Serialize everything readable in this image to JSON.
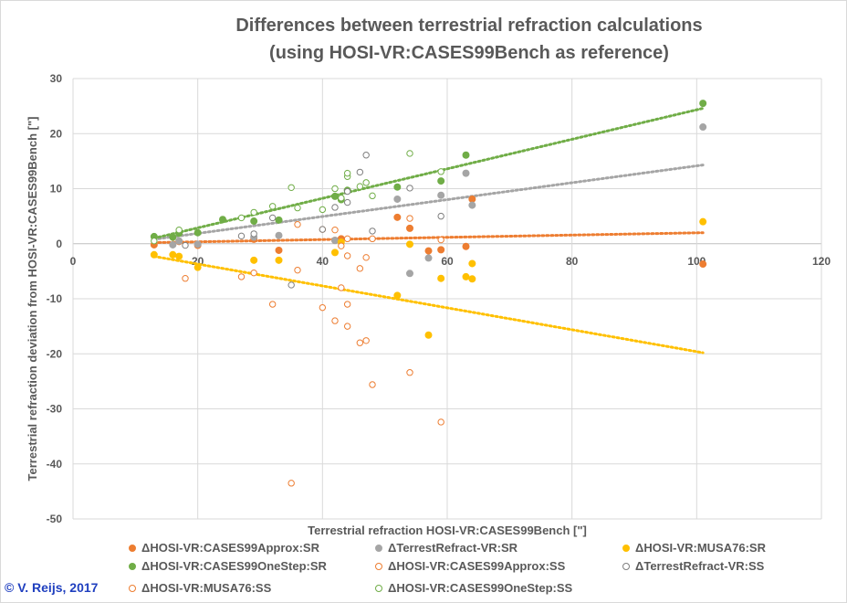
{
  "chart_data": {
    "type": "scatter",
    "title": [
      "Differences between terrestrial refraction calculations",
      "(using HOSI-VR:CASES99Bench as reference)"
    ],
    "xlabel": "Terrestrial refraction HOSI-VR:CASES99Bench [\"]",
    "ylabel": "Terrestrial refraction deviation from HOSI-VR:CASES99Bench [\"]",
    "xlim": [
      0,
      120
    ],
    "ylim": [
      -50,
      30
    ],
    "xticks": [
      0,
      20,
      40,
      60,
      80,
      100,
      120
    ],
    "yticks": [
      -50,
      -40,
      -30,
      -20,
      -10,
      0,
      10,
      20,
      30
    ],
    "xtick_labels": [
      "0",
      "20",
      "40",
      "60",
      "80",
      "100",
      "120"
    ],
    "ytick_labels": [
      "-50",
      "-40",
      "-30",
      "-20",
      "-10",
      "0",
      "10",
      "20",
      "30"
    ],
    "grid": true,
    "series": [
      {
        "name": "ΔHOSI-VR:CASES99Approx:SR",
        "color": "#ed7d31",
        "filled": true,
        "points": [
          [
            13,
            -0.2
          ],
          [
            17,
            0.4
          ],
          [
            20,
            -0.3
          ],
          [
            29,
            0.8
          ],
          [
            33,
            -1.2
          ],
          [
            42,
            0.6
          ],
          [
            43,
            0.9
          ],
          [
            52,
            4.8
          ],
          [
            54,
            2.8
          ],
          [
            57,
            -1.3
          ],
          [
            59,
            -1.1
          ],
          [
            63,
            -0.5
          ],
          [
            64,
            8.1
          ],
          [
            101,
            -3.7
          ]
        ],
        "trend": [
          [
            13,
            0.2
          ],
          [
            101,
            2.0
          ]
        ]
      },
      {
        "name": "ΔTerrestRefract-VR:SR",
        "color": "#a5a5a5",
        "filled": true,
        "points": [
          [
            16,
            -0.2
          ],
          [
            17,
            0.5
          ],
          [
            20,
            -0.1
          ],
          [
            29,
            1.2
          ],
          [
            33,
            1.5
          ],
          [
            42,
            0.6
          ],
          [
            52,
            8.1
          ],
          [
            54,
            -5.4
          ],
          [
            57,
            -2.6
          ],
          [
            59,
            8.8
          ],
          [
            63,
            12.8
          ],
          [
            64,
            7.0
          ],
          [
            101,
            21.2
          ]
        ],
        "trend": [
          [
            13,
            0.8
          ],
          [
            101,
            14.3
          ]
        ]
      },
      {
        "name": "ΔHOSI-VR:MUSA76:SR",
        "color": "#ffc000",
        "filled": true,
        "points": [
          [
            13,
            -2.0
          ],
          [
            16,
            -2.0
          ],
          [
            17,
            -2.3
          ],
          [
            20,
            -4.3
          ],
          [
            29,
            -3.0
          ],
          [
            33,
            -3.0
          ],
          [
            42,
            -1.6
          ],
          [
            43,
            0.3
          ],
          [
            52,
            -9.4
          ],
          [
            54,
            -0.1
          ],
          [
            57,
            -16.6
          ],
          [
            59,
            -6.3
          ],
          [
            63,
            -6.0
          ],
          [
            64,
            -3.6
          ],
          [
            64,
            -6.4
          ],
          [
            101,
            4.0
          ]
        ],
        "trend": [
          [
            13,
            -2.3
          ],
          [
            101,
            -19.8
          ]
        ]
      },
      {
        "name": "ΔHOSI-VR:CASES99OneStep:SR",
        "color": "#70ad47",
        "filled": true,
        "points": [
          [
            13,
            1.3
          ],
          [
            16,
            1.2
          ],
          [
            17,
            1.9
          ],
          [
            20,
            2.0
          ],
          [
            24,
            4.4
          ],
          [
            29,
            4.1
          ],
          [
            33,
            4.3
          ],
          [
            42,
            8.6
          ],
          [
            43,
            8.0
          ],
          [
            44,
            9.7
          ],
          [
            52,
            10.3
          ],
          [
            59,
            11.4
          ],
          [
            63,
            16.1
          ],
          [
            101,
            25.5
          ]
        ],
        "trend": [
          [
            13,
            1.0
          ],
          [
            101,
            24.6
          ]
        ]
      },
      {
        "name": "ΔHOSI-VR:CASES99Approx:SS",
        "color": "#ed7d31",
        "filled": false,
        "points": [
          [
            18,
            -6.3
          ],
          [
            27,
            -6.0
          ],
          [
            29,
            -5.3
          ],
          [
            32,
            -11.0
          ],
          [
            35,
            -43.5
          ],
          [
            36,
            -4.8
          ],
          [
            36,
            3.5
          ],
          [
            40,
            -11.6
          ],
          [
            40,
            2.6
          ],
          [
            42,
            -14.0
          ],
          [
            42,
            2.5
          ],
          [
            43,
            -8.0
          ],
          [
            43,
            -0.4
          ],
          [
            44,
            -15.0
          ],
          [
            44,
            -11.0
          ],
          [
            44,
            0.9
          ],
          [
            44,
            -2.2
          ],
          [
            46,
            -4.5
          ],
          [
            46,
            -18.0
          ],
          [
            47,
            -17.6
          ],
          [
            47,
            -2.5
          ],
          [
            48,
            -25.6
          ],
          [
            48,
            0.9
          ],
          [
            54,
            -23.4
          ],
          [
            54,
            4.6
          ],
          [
            59,
            -32.4
          ],
          [
            59,
            0.7
          ]
        ]
      },
      {
        "name": "ΔTerrestRefract-VR:SS",
        "color": "#7f7f7f",
        "filled": false,
        "points": [
          [
            18,
            -0.3
          ],
          [
            27,
            1.4
          ],
          [
            29,
            1.8
          ],
          [
            32,
            4.7
          ],
          [
            35,
            -7.5
          ],
          [
            40,
            2.6
          ],
          [
            42,
            6.6
          ],
          [
            44,
            7.5
          ],
          [
            44,
            9.5
          ],
          [
            46,
            13.0
          ],
          [
            47,
            16.1
          ],
          [
            48,
            2.3
          ],
          [
            54,
            10.1
          ],
          [
            59,
            5.0
          ]
        ]
      },
      {
        "name": "ΔHOSI-VR:MUSA76:SS",
        "color": "#ed7d31",
        "filled": false,
        "points": []
      },
      {
        "name": "ΔHOSI-VR:CASES99OneStep:SS",
        "color": "#70ad47",
        "filled": false,
        "points": [
          [
            13,
            0.5
          ],
          [
            17,
            2.5
          ],
          [
            27,
            4.7
          ],
          [
            29,
            5.7
          ],
          [
            32,
            6.8
          ],
          [
            35,
            10.2
          ],
          [
            36,
            6.5
          ],
          [
            40,
            6.2
          ],
          [
            42,
            10.0
          ],
          [
            43,
            8.3
          ],
          [
            44,
            12.2
          ],
          [
            44,
            12.8
          ],
          [
            46,
            10.4
          ],
          [
            47,
            11.1
          ],
          [
            48,
            8.7
          ],
          [
            54,
            16.4
          ],
          [
            59,
            13.1
          ]
        ]
      }
    ]
  },
  "legend": [
    {
      "label": "ΔHOSI-VR:CASES99Approx:SR",
      "color": "#ed7d31",
      "filled": true
    },
    {
      "label": "ΔTerrestRefract-VR:SR",
      "color": "#a5a5a5",
      "filled": true
    },
    {
      "label": "ΔHOSI-VR:MUSA76:SR",
      "color": "#ffc000",
      "filled": true
    },
    {
      "label": "ΔHOSI-VR:CASES99OneStep:SR",
      "color": "#70ad47",
      "filled": true
    },
    {
      "label": "ΔHOSI-VR:CASES99Approx:SS",
      "color": "#ed7d31",
      "filled": false
    },
    {
      "label": "ΔTerrestRefract-VR:SS",
      "color": "#7f7f7f",
      "filled": false
    },
    {
      "label": "ΔHOSI-VR:MUSA76:SS",
      "color": "#ed7d31",
      "filled": false
    },
    {
      "label": "ΔHOSI-VR:CASES99OneStep:SS",
      "color": "#70ad47",
      "filled": false
    }
  ],
  "copyright": "© V. Reijs, 2017"
}
